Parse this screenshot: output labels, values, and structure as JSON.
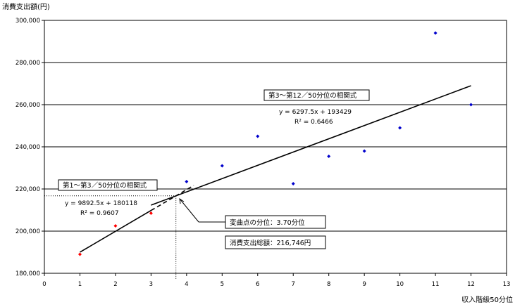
{
  "chart_data": {
    "type": "scatter",
    "ylabel": "消費支出額(円)",
    "xlabel": "収入階級50分位",
    "xlim": [
      0,
      13
    ],
    "ylim": [
      180000,
      300000
    ],
    "x_ticks": [
      0,
      1,
      2,
      3,
      4,
      5,
      6,
      7,
      8,
      9,
      10,
      11,
      12,
      13
    ],
    "y_ticks": [
      180000,
      200000,
      220000,
      240000,
      260000,
      280000,
      300000
    ],
    "y_tick_labels": [
      "180,000",
      "200,000",
      "220,000",
      "240,000",
      "260,000",
      "280,000",
      "300,000"
    ],
    "grid": "horizontal",
    "series": [
      {
        "color": "#ff0000",
        "points": [
          [
            1,
            189000
          ],
          [
            2,
            202500
          ],
          [
            3,
            208500
          ]
        ]
      },
      {
        "color": "#0000cc",
        "points": [
          [
            4,
            223500
          ],
          [
            5,
            231000
          ],
          [
            6,
            245000
          ],
          [
            7,
            222500
          ],
          [
            8,
            235500
          ],
          [
            9,
            238000
          ],
          [
            10,
            249000
          ],
          [
            11,
            294000
          ],
          [
            12,
            260000
          ]
        ]
      }
    ],
    "fits": [
      {
        "label": "第1～第3／50分位の相関式",
        "equation": "y = 9892.5x + 180118",
        "r2": "R² = 0.9607",
        "x_range": [
          1,
          3
        ]
      },
      {
        "label": "第3～第12／50分位の相関式",
        "equation": "y = 6297.5x + 193429",
        "r2": "R² = 0.6466",
        "x_range": [
          3,
          12
        ]
      }
    ],
    "dashed_extension": {
      "x_range": [
        3,
        4.2
      ]
    },
    "inflection": {
      "x": 3.7,
      "y": 216746,
      "label_point": "変曲点の分位：3.70分位",
      "label_amount": "消費支出総額：216,746円"
    }
  }
}
